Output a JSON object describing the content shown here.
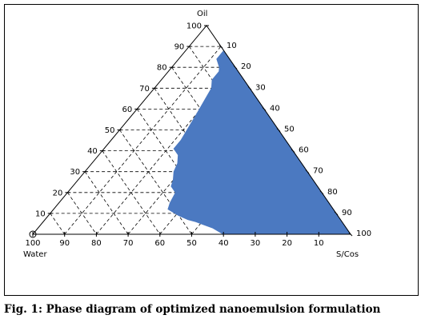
{
  "chart_data": {
    "type": "ternary",
    "components": {
      "top": "Oil",
      "left": "Water",
      "right": "S/Cos"
    },
    "ticks": {
      "top": [
        "10",
        "20",
        "30",
        "40",
        "50",
        "60",
        "70",
        "80",
        "90",
        "100"
      ],
      "left": [
        "100",
        "90",
        "80",
        "70",
        "60",
        "50",
        "40",
        "30",
        "20",
        "10"
      ],
      "right": [
        "10",
        "20",
        "30",
        "40",
        "50",
        "60",
        "70",
        "80",
        "90",
        "100"
      ]
    },
    "region_fill": "#4b79c1",
    "grid": true,
    "grid_style": "dashed",
    "nanoemulsion_region_oil_right": [
      [
        90,
        10
      ],
      [
        88,
        12
      ],
      [
        84,
        12
      ],
      [
        80,
        15
      ],
      [
        78,
        16
      ],
      [
        74,
        16
      ],
      [
        70,
        18
      ],
      [
        58,
        20
      ],
      [
        45,
        22
      ],
      [
        41,
        22
      ],
      [
        38,
        25
      ],
      [
        34,
        27
      ],
      [
        30,
        28
      ],
      [
        28,
        29
      ],
      [
        26,
        30
      ],
      [
        23,
        31
      ],
      [
        20,
        34
      ],
      [
        15,
        35
      ],
      [
        12,
        36
      ],
      [
        9,
        41
      ],
      [
        7,
        45
      ],
      [
        6,
        48
      ],
      [
        3,
        55
      ],
      [
        0,
        60
      ],
      [
        0,
        100
      ]
    ]
  },
  "caption": "Fig. 1: Phase diagram of optimized nanoemulsion formulation"
}
